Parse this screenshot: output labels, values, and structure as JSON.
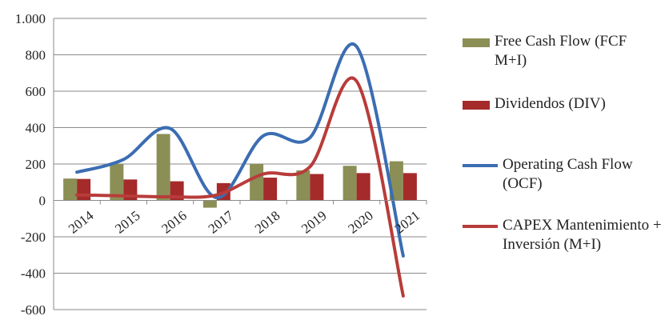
{
  "chart_data": {
    "type": "bar+line",
    "categories": [
      "2014",
      "2015",
      "2016",
      "2017",
      "2018",
      "2019",
      "2020",
      "2021"
    ],
    "ylim": [
      -600,
      1000
    ],
    "yticks": [
      -600,
      -400,
      -200,
      0,
      200,
      400,
      600,
      800,
      1000
    ],
    "ytick_labels": [
      "-600",
      "-400",
      "-200",
      "0",
      "200",
      "400",
      "600",
      "800",
      "1.000"
    ],
    "grid": true,
    "legend_position": "right",
    "series": [
      {
        "name": "Free Cash Flow (FCF M+I)",
        "kind": "bar",
        "color": "#8b8f55",
        "values": [
          120,
          200,
          365,
          -40,
          200,
          165,
          190,
          215
        ]
      },
      {
        "name": "Dividendos (DIV)",
        "kind": "bar",
        "color": "#a52a2a",
        "values": [
          118,
          115,
          105,
          95,
          125,
          145,
          150,
          150
        ]
      },
      {
        "name": "Operating Cash Flow (OCF)",
        "kind": "line",
        "color": "#3b6db2",
        "values": [
          155,
          225,
          395,
          15,
          355,
          345,
          845,
          -305
        ]
      },
      {
        "name": "CAPEX Mantenimiento + Inversión (M+I)",
        "kind": "line",
        "color": "#b83c3a",
        "values": [
          30,
          25,
          20,
          30,
          145,
          185,
          655,
          -525
        ]
      }
    ]
  }
}
